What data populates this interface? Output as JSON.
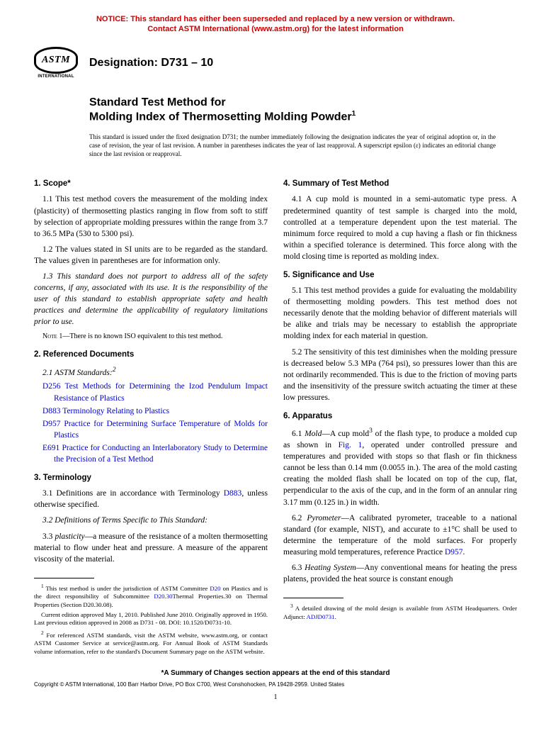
{
  "notice": {
    "line1": "NOTICE: This standard has either been superseded and replaced by a new version or withdrawn.",
    "line2": "Contact ASTM International (www.astm.org) for the latest information"
  },
  "logo": {
    "text": "ASTM",
    "subtitle": "INTERNATIONAL"
  },
  "designation": "Designation: D731 – 10",
  "title": {
    "prefix": "Standard Test Method for",
    "main": "Molding Index of Thermosetting Molding Powder",
    "super": "1"
  },
  "preamble": "This standard is issued under the fixed designation D731; the number immediately following the designation indicates the year of original adoption or, in the case of revision, the year of last revision. A number in parentheses indicates the year of last reapproval. A superscript epsilon (ε) indicates an editorial change since the last revision or reapproval.",
  "left": {
    "s1": {
      "head": "1. Scope*",
      "p1": "1.1 This test method covers the measurement of the molding index (plasticity) of thermosetting plastics ranging in flow from soft to stiff by selection of appropriate molding pressures within the range from 3.7 to 36.5 MPa (530 to 5300 psi).",
      "p2": "1.2 The values stated in SI units are to be regarded as the standard. The values given in parentheses are for information only.",
      "p3": "1.3 This standard does not purport to address all of the safety concerns, if any, associated with its use. It is the responsibility of the user of this standard to establish appropriate safety and health practices and determine the applicability of regulatory limitations prior to use.",
      "note1": "There is no known ISO equivalent to this test method."
    },
    "s2": {
      "head": "2. Referenced Documents",
      "sub": "2.1 ASTM Standards:",
      "sup": "2",
      "r1_code": "D256",
      "r1_text": " Test Methods for Determining the Izod Pendulum Impact Resistance of Plastics",
      "r2_code": "D883",
      "r2_text": " Terminology Relating to Plastics",
      "r3_code": "D957",
      "r3_text": " Practice for Determining Surface Temperature of Molds for Plastics",
      "r4_code": "E691",
      "r4_text": " Practice for Conducting an Interlaboratory Study to Determine the Precision of a Test Method"
    },
    "s3": {
      "head": "3. Terminology",
      "p1_a": "3.1 Definitions are in accordance with Terminology ",
      "p1_link": "D883",
      "p1_b": ", unless otherwise specified.",
      "p2": "3.2 Definitions of Terms Specific to This Standard:",
      "p3_num": "3.3 ",
      "p3_term": "plasticity",
      "p3_body": "—a measure of the resistance of a molten thermosetting material to flow under heat and pressure. A measure of the apparent viscosity of the material."
    },
    "fn1_a": " This test method is under the jurisdiction of ASTM Committee ",
    "fn1_link1": "D20",
    "fn1_b": " on Plastics and is the direct responsibility of Subcommittee ",
    "fn1_link2": "D20.30",
    "fn1_c": "Thermal Properties.30 on Thermal Properties (Section D20.30.08).",
    "fn1_d": "Current edition approved May 1, 2010. Published June 2010. Originally approved in 1950. Last previous edition approved in 2008 as D731 - 08. DOI: 10.1520/D0731-10.",
    "fn2": " For referenced ASTM standards, visit the ASTM website, www.astm.org, or contact ASTM Customer Service at service@astm.org. For Annual Book of ASTM Standards volume information, refer to the standard's Document Summary page on the ASTM website."
  },
  "right": {
    "s4": {
      "head": "4. Summary of Test Method",
      "p1": "4.1 A cup mold is mounted in a semi-automatic type press. A predetermined quantity of test sample is charged into the mold, controlled at a temperature dependent upon the test material. The minimum force required to mold a cup having a flash or fin thickness within a specified tolerance is determined. This force along with the mold closing time is reported as molding index."
    },
    "s5": {
      "head": "5. Significance and Use",
      "p1": "5.1 This test method provides a guide for evaluating the moldability of thermosetting molding powders. This test method does not necessarily denote that the molding behavior of different materials will be alike and trials may be necessary to establish the appropriate molding index for each material in question.",
      "p2": "5.2 The sensitivity of this test diminishes when the molding pressure is decreased below 5.3 MPa (764 psi), so pressures lower than this are not ordinarily recommended. This is due to the friction of moving parts and the insensitivity of the pressure switch actuating the timer at these low pressures."
    },
    "s6": {
      "head": "6. Apparatus",
      "p1_num": "6.1 ",
      "p1_term": "Mold",
      "p1_a": "—A cup mold",
      "p1_sup": "3",
      "p1_b": " of the flash type, to produce a molded cup as shown in ",
      "p1_link": "Fig. 1",
      "p1_c": ", operated under controlled pressure and temperatures and provided with stops so that flash or fin thickness cannot be less than 0.14 mm (0.0055 in.). The area of the mold casting creating the molded flash shall be located on top of the cup, flat, perpendicular to the axis of the cup, and in the form of an annular ring 3.17 mm (0.125 in.) in width.",
      "p2_num": "6.2 ",
      "p2_term": "Pyrometer",
      "p2_a": "—A calibrated pyrometer, traceable to a national standard (for example, NIST), and accurate to ±1°C shall be used to determine the temperature of the mold surfaces. For properly measuring mold temperatures, reference Practice ",
      "p2_link": "D957",
      "p2_b": ".",
      "p3_num": "6.3 ",
      "p3_term": "Heating System",
      "p3_a": "—Any conventional means for heating the press platens, provided the heat source is constant enough"
    },
    "fn3_a": " A detailed drawing of the mold design is available from ASTM Headquarters. Order Adjunct: ",
    "fn3_link": "ADJD0731",
    "fn3_b": "."
  },
  "footer": {
    "changes": "*A Summary of Changes section appears at the end of this standard",
    "copyright": "Copyright © ASTM International, 100 Barr Harbor Drive, PO Box C700, West Conshohocken, PA 19428-2959. United States",
    "page": "1"
  }
}
